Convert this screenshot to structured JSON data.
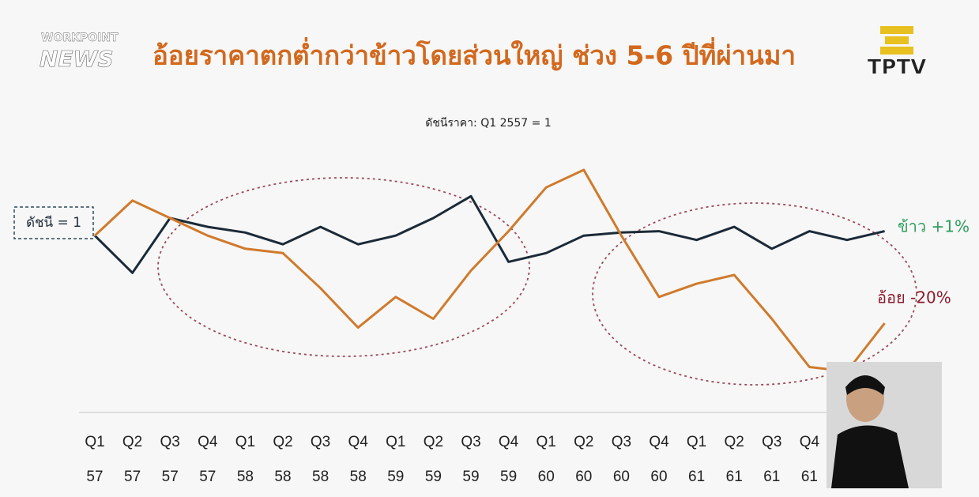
{
  "chart_data": {
    "type": "line",
    "title": "อ้อยราคาตกต่ำกว่าข้าวโดยส่วนใหญ่ ช่วง 5-6 ปีที่ผ่านมา",
    "subtitle": "ดัชนีราคา: Q1 2557 = 1",
    "annotation": "ดัชนี = 1",
    "categories": [
      [
        "Q1",
        "57"
      ],
      [
        "Q2",
        "57"
      ],
      [
        "Q3",
        "57"
      ],
      [
        "Q4",
        "57"
      ],
      [
        "Q1",
        "58"
      ],
      [
        "Q2",
        "58"
      ],
      [
        "Q3",
        "58"
      ],
      [
        "Q4",
        "58"
      ],
      [
        "Q1",
        "59"
      ],
      [
        "Q2",
        "59"
      ],
      [
        "Q3",
        "59"
      ],
      [
        "Q4",
        "59"
      ],
      [
        "Q1",
        "60"
      ],
      [
        "Q2",
        "60"
      ],
      [
        "Q3",
        "60"
      ],
      [
        "Q4",
        "60"
      ],
      [
        "Q1",
        "61"
      ],
      [
        "Q2",
        "61"
      ],
      [
        "Q3",
        "61"
      ],
      [
        "Q4",
        "61"
      ],
      null,
      null
    ],
    "series": [
      {
        "name": "ข้าว +1%",
        "color": "#1b2a38",
        "label_color": "#2e9e5b",
        "values": [
          1.0,
          0.915,
          1.04,
          1.02,
          1.007,
          0.98,
          1.02,
          0.98,
          1.0,
          1.04,
          1.09,
          0.94,
          0.96,
          1.0,
          1.007,
          1.01,
          0.99,
          1.02,
          0.97,
          1.01,
          0.99,
          1.01
        ]
      },
      {
        "name": "อ้อย -20%",
        "color": "#d07a2c",
        "label_color": "#8b1a2b",
        "values": [
          1.0,
          1.08,
          1.04,
          1.0,
          0.97,
          0.96,
          0.88,
          0.79,
          0.86,
          0.81,
          0.92,
          1.01,
          1.11,
          1.15,
          1.0,
          0.86,
          0.89,
          0.91,
          0.81,
          0.7,
          0.69,
          0.8
        ]
      }
    ]
  },
  "overlay": {
    "channel_logo": [
      "WORKPOINT",
      "NEWS"
    ],
    "station_logo": "TPTV"
  }
}
